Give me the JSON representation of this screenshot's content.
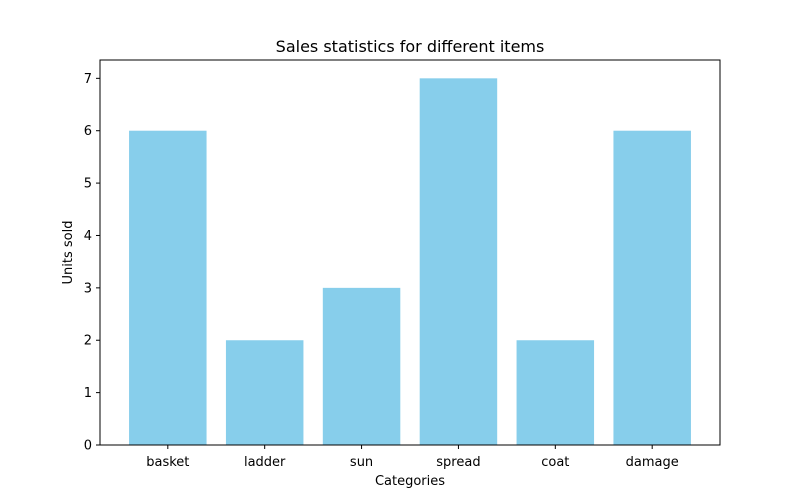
{
  "chart_data": {
    "type": "bar",
    "title": "Sales statistics for different items",
    "xlabel": "Categories",
    "ylabel": "Units sold",
    "categories": [
      "basket",
      "ladder",
      "sun",
      "spread",
      "coat",
      "damage"
    ],
    "values": [
      6,
      2,
      3,
      7,
      2,
      6
    ],
    "ylim": [
      0,
      7.35
    ],
    "yticks": [
      0,
      1,
      2,
      3,
      4,
      5,
      6,
      7
    ],
    "bar_color": "#87ceeb",
    "grid": false,
    "legend": "none"
  }
}
